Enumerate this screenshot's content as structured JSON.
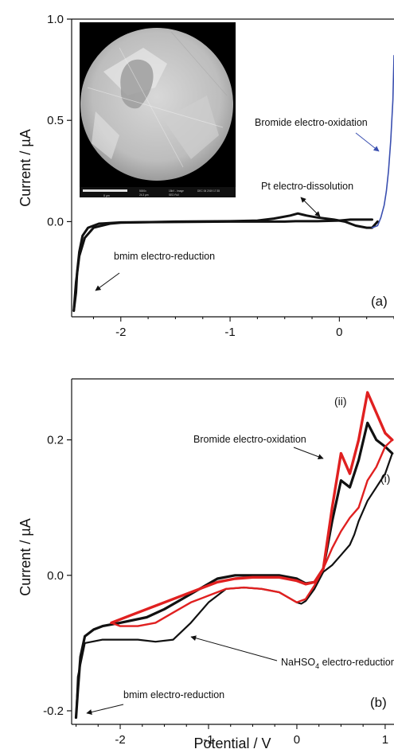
{
  "chart_data": [
    {
      "type": "line",
      "panel": "(a)",
      "ylabel": "Current / µA",
      "xlim": [
        -2.45,
        0.5
      ],
      "ylim": [
        -0.47,
        1.0
      ],
      "x_ticks": [
        -2,
        -1,
        0
      ],
      "y_ticks": [
        0.0,
        0.5,
        1.0
      ],
      "y_tick_labels": [
        "0.0",
        "0.5",
        "1.0"
      ],
      "grid": false,
      "colors": {
        "black": "#111111",
        "blue": "#3a4fb0"
      },
      "annotations": [
        {
          "text": "Bromide electro-oxidation",
          "color": "#3a4fb0",
          "x": 0.1,
          "y": 0.55,
          "arrow_to": [
            0.45,
            0.38
          ]
        },
        {
          "text": "Pt electro-dissolution",
          "color": "#111111",
          "x": -0.6,
          "y": 0.13,
          "arrow_to": [
            -0.4,
            0.04
          ]
        },
        {
          "text": "bmim electro-reduction",
          "color": "#111111",
          "x": -2.25,
          "y": -0.11,
          "arrow_to": [
            -2.35,
            -0.27
          ]
        }
      ],
      "inset": {
        "type": "SEM image",
        "scale_text": "8 µm",
        "footer_text": [
          "5000x",
          "15kV - Image",
          "24.3 µm",
          "DEC 06 2019 17:35",
          "SED Full"
        ]
      },
      "series": [
        {
          "color": "#111111",
          "x": [
            0.3,
            0.2,
            0.1,
            0.0,
            -0.2,
            -0.4,
            -0.5,
            -0.7,
            -1.0,
            -1.5,
            -2.0,
            -2.2,
            -2.3,
            -2.35,
            -2.38,
            -2.4,
            -2.41,
            -2.43
          ],
          "y": [
            0.01,
            0.01,
            0.01,
            0.005,
            0.002,
            0.002,
            0.0,
            0.0,
            0.0,
            -0.002,
            -0.004,
            -0.01,
            -0.03,
            -0.07,
            -0.15,
            -0.25,
            -0.35,
            -0.44
          ]
        },
        {
          "color": "#111111",
          "x": [
            -2.43,
            -2.41,
            -2.38,
            -2.33,
            -2.25,
            -2.1,
            -2.0,
            -1.5,
            -1.0,
            -0.75,
            -0.6,
            -0.45,
            -0.38,
            -0.3,
            -0.2,
            -0.05,
            0.05,
            0.15,
            0.25,
            0.3,
            0.35
          ],
          "y": [
            -0.44,
            -0.3,
            -0.17,
            -0.08,
            -0.03,
            -0.01,
            -0.005,
            0.0,
            0.002,
            0.005,
            0.015,
            0.03,
            0.04,
            0.03,
            0.02,
            0.01,
            0.0,
            -0.02,
            -0.03,
            -0.03,
            0.0
          ]
        },
        {
          "color": "#3a4fb0",
          "x": [
            0.3,
            0.35,
            0.38,
            0.41,
            0.43,
            0.45,
            0.47,
            0.49,
            0.5
          ],
          "y": [
            -0.03,
            -0.02,
            0.02,
            0.08,
            0.15,
            0.25,
            0.4,
            0.6,
            0.82
          ]
        }
      ]
    },
    {
      "type": "line",
      "panel": "(b)",
      "xlabel": "Potential / V",
      "ylabel": "Current / µA",
      "xlim": [
        -2.55,
        1.1
      ],
      "ylim": [
        -0.22,
        0.29
      ],
      "x_ticks": [
        -2,
        -1,
        0,
        1
      ],
      "y_ticks": [
        -0.2,
        0.0,
        0.2
      ],
      "y_tick_labels": [
        "-0.2",
        "0.0",
        "0.2"
      ],
      "grid": false,
      "colors": {
        "black": "#111111",
        "red": "#e02020"
      },
      "annotations": [
        {
          "text": "(ii)",
          "color": "#e02020",
          "x": 0.68,
          "y": 0.265
        },
        {
          "text": "(i)",
          "color": "#111111",
          "x": 1.0,
          "y": 0.112
        },
        {
          "text": "Bromide electro-oxidation",
          "color": "#111111",
          "x": -0.6,
          "y": 0.2,
          "arrow_to": [
            0.2,
            0.18
          ]
        },
        {
          "text": "NaHSO4 electro-reduction",
          "color": "#111111",
          "x": -0.2,
          "y": -0.11,
          "arrow_to": [
            -0.9,
            -0.085
          ]
        },
        {
          "text": "bmim electro-reduction",
          "color": "#111111",
          "x": -1.6,
          "y": -0.142,
          "arrow_to": [
            -2.4,
            -0.175
          ]
        }
      ],
      "series": [
        {
          "name": "(i)",
          "color": "#111111",
          "x": [
            -2.5,
            -2.48,
            -2.45,
            -2.4,
            -2.3,
            -2.2,
            -2.0,
            -1.7,
            -1.5,
            -1.3,
            -1.1,
            -0.9,
            -0.7,
            -0.5,
            -0.2,
            0.0,
            0.1,
            0.2,
            0.3,
            0.4,
            0.5,
            0.6,
            0.7,
            0.8,
            0.9,
            1.0,
            1.08
          ],
          "y": [
            -0.21,
            -0.17,
            -0.12,
            -0.09,
            -0.08,
            -0.075,
            -0.07,
            -0.062,
            -0.05,
            -0.035,
            -0.02,
            -0.005,
            0.0,
            0.0,
            0.0,
            -0.005,
            -0.012,
            -0.01,
            0.01,
            0.08,
            0.14,
            0.13,
            0.17,
            0.225,
            0.2,
            0.19,
            0.18
          ]
        },
        {
          "name": "(i)",
          "color": "#111111",
          "x": [
            1.08,
            1.0,
            0.9,
            0.8,
            0.7,
            0.65,
            0.6,
            0.5,
            0.4,
            0.3,
            0.2,
            0.1,
            0.05,
            0.0,
            -0.2,
            -0.4,
            -0.6,
            -0.8,
            -1.0,
            -1.2,
            -1.4,
            -1.6,
            -1.8,
            -2.0,
            -2.2,
            -2.4,
            -2.48,
            -2.5
          ],
          "y": [
            0.18,
            0.15,
            0.13,
            0.11,
            0.08,
            0.06,
            0.045,
            0.03,
            0.015,
            0.005,
            -0.02,
            -0.038,
            -0.042,
            -0.04,
            -0.025,
            -0.02,
            -0.018,
            -0.02,
            -0.04,
            -0.07,
            -0.095,
            -0.098,
            -0.095,
            -0.095,
            -0.095,
            -0.1,
            -0.15,
            -0.21
          ]
        },
        {
          "name": "(ii)",
          "color": "#e02020",
          "x": [
            -2.1,
            -1.9,
            -1.7,
            -1.5,
            -1.3,
            -1.1,
            -0.9,
            -0.7,
            -0.5,
            -0.2,
            0.0,
            0.1,
            0.2,
            0.3,
            0.4,
            0.5,
            0.6,
            0.7,
            0.8,
            0.9,
            1.0,
            1.08
          ],
          "y": [
            -0.07,
            -0.06,
            -0.05,
            -0.04,
            -0.03,
            -0.02,
            -0.01,
            -0.005,
            -0.003,
            -0.003,
            -0.008,
            -0.013,
            -0.01,
            0.01,
            0.1,
            0.18,
            0.15,
            0.2,
            0.27,
            0.24,
            0.21,
            0.2
          ]
        },
        {
          "name": "(ii)",
          "color": "#e02020",
          "x": [
            1.08,
            1.0,
            0.9,
            0.8,
            0.7,
            0.6,
            0.5,
            0.4,
            0.3,
            0.2,
            0.1,
            0.0,
            -0.2,
            -0.4,
            -0.6,
            -0.8,
            -1.0,
            -1.2,
            -1.4,
            -1.6,
            -1.8,
            -2.0,
            -2.1
          ],
          "y": [
            0.2,
            0.19,
            0.16,
            0.14,
            0.1,
            0.085,
            0.065,
            0.04,
            0.01,
            -0.015,
            -0.035,
            -0.04,
            -0.025,
            -0.02,
            -0.018,
            -0.02,
            -0.03,
            -0.04,
            -0.055,
            -0.07,
            -0.075,
            -0.075,
            -0.07
          ]
        }
      ]
    }
  ],
  "labels": {
    "a_ylabel": "Current / µA",
    "b_ylabel": "Current / µA",
    "b_xlabel": "Potential / V",
    "a_panel": "(a)",
    "b_panel": "(b)",
    "a_bromide": "Bromide electro-oxidation",
    "a_pt": "Pt electro-dissolution",
    "a_bmim": "bmim electro-reduction",
    "b_ii": "(ii)",
    "b_i": "(i)",
    "b_bromide": "Bromide electro-oxidation",
    "b_nahso4_pre": "NaHSO",
    "b_nahso4_sub": "4",
    "b_nahso4_post": " electro-reduction",
    "b_bmim": "bmim electro-reduction"
  }
}
